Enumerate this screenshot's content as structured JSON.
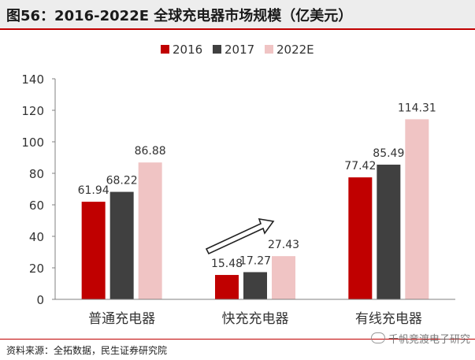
{
  "header": {
    "title": "图56：2016-2022E 全球充电器市场规模（亿美元）"
  },
  "footer": {
    "source": "资料来源：全拓数据，民生证券研究院",
    "watermark": "千帆竞渡电子研究"
  },
  "colors": {
    "s2016": "#c00000",
    "s2017": "#404040",
    "s2022": "#f0c4c4",
    "accent": "#c00000"
  },
  "chart_data": {
    "type": "bar",
    "title": "2016-2022E 全球充电器市场规模（亿美元）",
    "categories": [
      "普通充电器",
      "快充充电器",
      "有线充电器"
    ],
    "series": [
      {
        "name": "2016",
        "values": [
          61.94,
          15.48,
          77.42
        ],
        "labels": [
          "61.94",
          "15.48",
          "77.42"
        ]
      },
      {
        "name": "2017",
        "values": [
          68.22,
          17.27,
          85.49
        ],
        "labels": [
          "68.22",
          "17.27",
          "85.49"
        ]
      },
      {
        "name": "2022E",
        "values": [
          86.88,
          27.43,
          114.31
        ],
        "labels": [
          "86.88",
          "27.43",
          "114.31"
        ]
      }
    ],
    "yticks": [
      "0",
      "20",
      "40",
      "60",
      "80",
      "100",
      "120",
      "140"
    ],
    "ylim": [
      0,
      140
    ],
    "xlabel": "",
    "ylabel": "",
    "legend": "top-center",
    "annotations": [
      "arrow pointing up-right over 快充充电器"
    ]
  }
}
